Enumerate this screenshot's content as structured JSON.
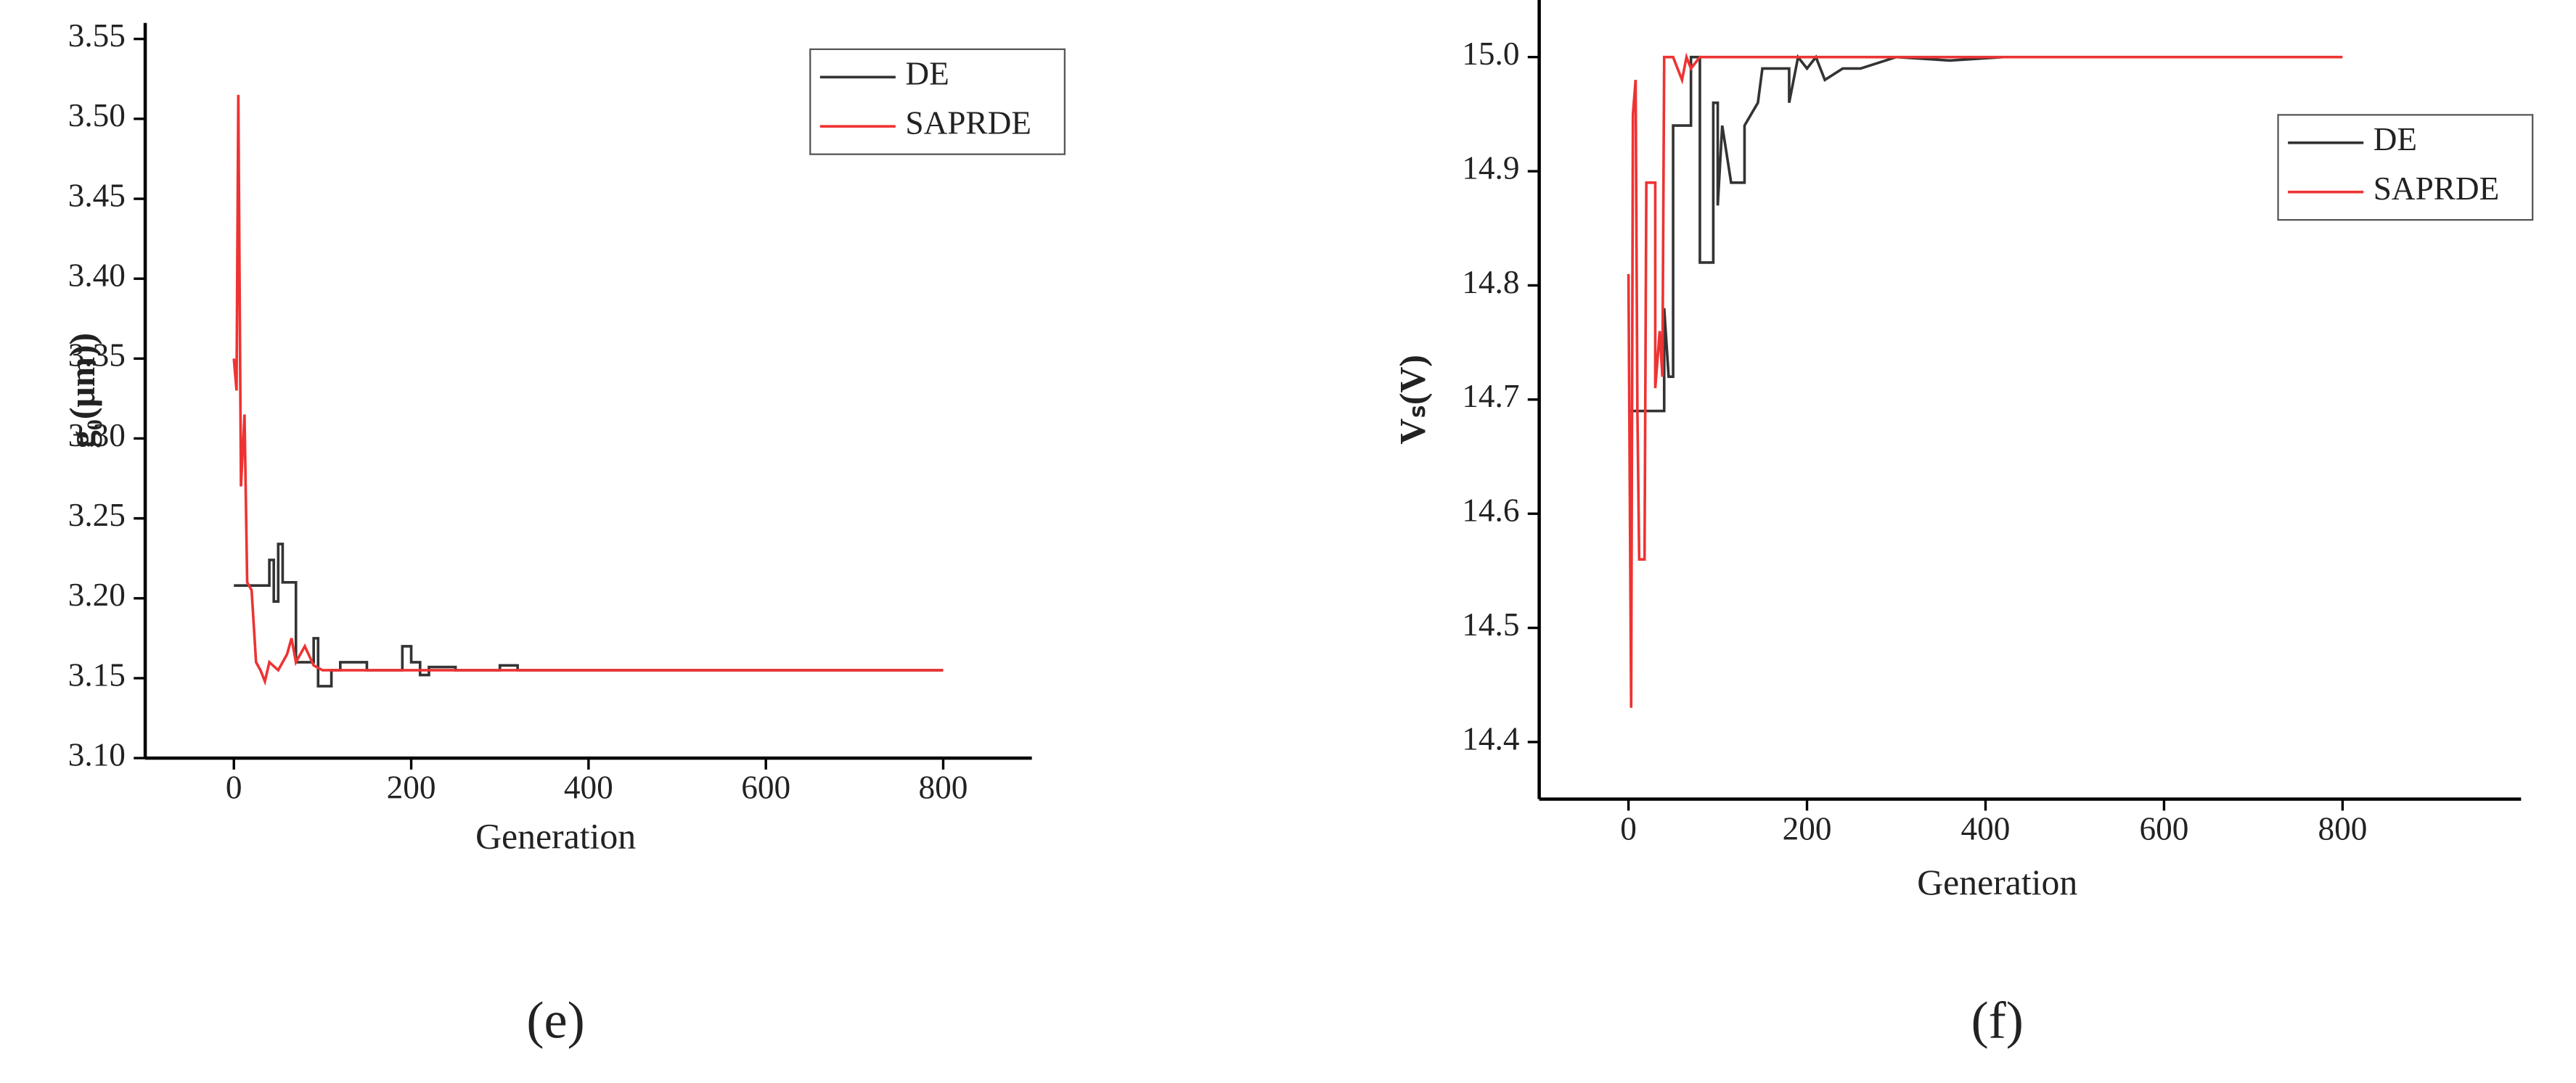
{
  "chart_data": [
    {
      "type": "line",
      "xlabel": "Generation",
      "ylabel": "g₀(μm))",
      "caption": "(e)",
      "xlim": [
        -100,
        900
      ],
      "xticks": [
        0,
        200,
        400,
        600,
        800
      ],
      "ylim": [
        3.1,
        3.56
      ],
      "yticks": [
        {
          "value": 3.1,
          "label": "3.10"
        },
        3.15,
        {
          "value": 3.2,
          "label": "3.20"
        },
        3.25,
        {
          "value": 3.3,
          "label": "3.30"
        },
        3.35,
        {
          "value": 3.4,
          "label": "3.40"
        },
        3.45,
        {
          "value": 3.5,
          "label": "3.50"
        },
        3.55
      ],
      "legend": "upper right",
      "series": [
        {
          "name": "DE",
          "color": "#333333",
          "x": [
            0,
            40,
            40,
            45,
            45,
            50,
            50,
            55,
            55,
            70,
            70,
            90,
            90,
            95,
            95,
            100,
            100,
            110,
            110,
            120,
            120,
            150,
            150,
            190,
            190,
            200,
            200,
            210,
            210,
            220,
            220,
            250,
            250,
            300,
            300,
            320,
            320,
            330,
            330,
            800
          ],
          "values": [
            3.208,
            3.208,
            3.224,
            3.224,
            3.198,
            3.198,
            3.234,
            3.234,
            3.21,
            3.21,
            3.16,
            3.16,
            3.175,
            3.175,
            3.145,
            3.145,
            3.145,
            3.145,
            3.155,
            3.155,
            3.16,
            3.16,
            3.155,
            3.155,
            3.17,
            3.17,
            3.16,
            3.16,
            3.152,
            3.152,
            3.157,
            3.157,
            3.155,
            3.155,
            3.158,
            3.158,
            3.155,
            3.155,
            3.155,
            3.155
          ]
        },
        {
          "name": "SAPRDE",
          "color": "#ee3333",
          "x": [
            0,
            3,
            5,
            8,
            12,
            15,
            20,
            25,
            30,
            35,
            40,
            50,
            60,
            65,
            70,
            80,
            90,
            100,
            800
          ],
          "values": [
            3.35,
            3.33,
            3.515,
            3.27,
            3.315,
            3.21,
            3.205,
            3.16,
            3.155,
            3.148,
            3.16,
            3.155,
            3.165,
            3.175,
            3.16,
            3.17,
            3.158,
            3.155,
            3.155
          ]
        }
      ]
    },
    {
      "type": "line",
      "xlabel": "Generation",
      "ylabel": "Vₛ(V)",
      "caption": "(f)",
      "xlim": [
        -100,
        1000
      ],
      "xticks": [
        0,
        200,
        400,
        600,
        800
      ],
      "ylim": [
        14.35,
        15.05
      ],
      "yticks": [
        14.4,
        14.5,
        14.6,
        14.7,
        14.8,
        14.9,
        {
          "value": 15.0,
          "label": "15.0"
        }
      ],
      "legend": "upper right",
      "series": [
        {
          "name": "DE",
          "color": "#333333",
          "x": [
            0,
            40,
            40,
            45,
            50,
            50,
            70,
            70,
            80,
            80,
            95,
            95,
            100,
            100,
            105,
            115,
            130,
            130,
            145,
            150,
            180,
            180,
            190,
            200,
            210,
            220,
            240,
            260,
            280,
            300,
            360,
            420
          ],
          "values": [
            14.69,
            14.69,
            14.78,
            14.72,
            14.72,
            14.94,
            14.94,
            15.0,
            15.0,
            14.82,
            14.82,
            14.96,
            14.96,
            14.87,
            14.94,
            14.89,
            14.89,
            14.94,
            14.96,
            14.99,
            14.99,
            14.96,
            15.0,
            14.99,
            15.0,
            14.98,
            14.99,
            14.99,
            14.995,
            15.0,
            14.997,
            15.0
          ]
        },
        {
          "name": "SAPRDE",
          "color": "#ee3333",
          "x": [
            0,
            3,
            5,
            8,
            10,
            12,
            18,
            20,
            30,
            30,
            35,
            38,
            40,
            50,
            55,
            60,
            65,
            70,
            80,
            800
          ],
          "values": [
            14.81,
            14.43,
            14.95,
            14.98,
            14.69,
            14.56,
            14.56,
            14.89,
            14.89,
            14.71,
            14.76,
            14.72,
            15.0,
            15.0,
            14.99,
            14.98,
            15.0,
            14.99,
            15.0,
            15.0
          ]
        }
      ]
    }
  ]
}
